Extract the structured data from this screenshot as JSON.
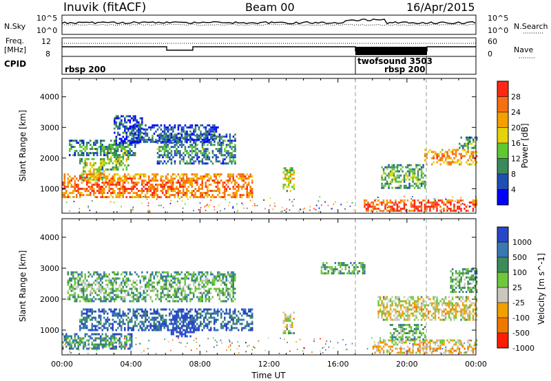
{
  "header": {
    "station": "Inuvik (fitACF)",
    "beam": "Beam 00",
    "date": "16/Apr/2015"
  },
  "strips": {
    "nsky_label": "N.Sky",
    "nsky_ticks": [
      "10^5",
      "10^0"
    ],
    "nsearch_label": "N.Search",
    "nsearch_ticks": [
      "10^5",
      "10^0"
    ],
    "freq_label_1": "Freq.",
    "freq_label_2": "[MHz]",
    "freq_ticks": [
      "12",
      "8"
    ],
    "nave_label": "Nave",
    "nave_ticks": [
      "60",
      "0"
    ],
    "cpid_label": "CPID",
    "cpid_entries": [
      {
        "text": "rbsp 200",
        "start_hour": 0
      },
      {
        "text": "twofsound 3503",
        "start_hour": 17.0
      },
      {
        "text": "rbsp 200",
        "start_hour": 21.0
      }
    ]
  },
  "chart_data": [
    {
      "type": "heatmap",
      "panel": "power",
      "ylabel": "Slant Range [km]",
      "xlabel": "",
      "x_range_hours": [
        0,
        24
      ],
      "y_range_km": [
        200,
        4600
      ],
      "y_ticks": [
        1000,
        2000,
        3000,
        4000
      ],
      "colorbar": {
        "label": "Power [dB]",
        "ticks": [
          "4",
          "8",
          "12",
          "16",
          "20",
          "24",
          "28"
        ],
        "colors": [
          "#0000ff",
          "#1e50b4",
          "#3a8a5c",
          "#5fc832",
          "#e6d20a",
          "#f5a000",
          "#f57014",
          "#ff2814"
        ]
      },
      "echo_regions": [
        {
          "t0": 0.4,
          "t1": 4.2,
          "r0": 2100,
          "r1": 2600,
          "level": 0.35
        },
        {
          "t0": 1.0,
          "t1": 2.4,
          "r0": 1300,
          "r1": 2000,
          "level": 0.55
        },
        {
          "t0": 2.2,
          "t1": 3.8,
          "r0": 1600,
          "r1": 2400,
          "level": 0.5
        },
        {
          "t0": 3.0,
          "t1": 4.6,
          "r0": 2500,
          "r1": 3400,
          "level": 0.25
        },
        {
          "t0": 0.0,
          "t1": 11.0,
          "r0": 700,
          "r1": 1500,
          "level": 0.85
        },
        {
          "t0": 5.5,
          "t1": 10.0,
          "r0": 1800,
          "r1": 2800,
          "level": 0.35
        },
        {
          "t0": 4.0,
          "t1": 9.0,
          "r0": 2500,
          "r1": 3100,
          "level": 0.25
        },
        {
          "t0": 12.8,
          "t1": 13.4,
          "r0": 900,
          "r1": 1700,
          "level": 0.6
        },
        {
          "t0": 17.5,
          "t1": 24.0,
          "r0": 250,
          "r1": 650,
          "level": 0.95
        },
        {
          "t0": 18.5,
          "t1": 21.0,
          "r0": 1000,
          "r1": 1800,
          "level": 0.45
        },
        {
          "t0": 21.0,
          "t1": 24.0,
          "r0": 1800,
          "r1": 2300,
          "level": 0.8
        },
        {
          "t0": 23.0,
          "t1": 24.0,
          "r0": 2300,
          "r1": 2700,
          "level": 0.4
        }
      ]
    },
    {
      "type": "heatmap",
      "panel": "velocity",
      "ylabel": "Slant Range [km]",
      "xlabel": "Time UT",
      "x_range_hours": [
        0,
        24
      ],
      "x_ticks": [
        "00:00",
        "04:00",
        "08:00",
        "12:00",
        "16:00",
        "20:00",
        "00:00"
      ],
      "y_range_km": [
        200,
        4600
      ],
      "y_ticks": [
        1000,
        2000,
        3000,
        4000
      ],
      "colorbar": {
        "label": "Velocity [m s^-1]",
        "ticks": [
          "1000",
          "500",
          "100",
          "25",
          "-25",
          "-100",
          "-500",
          "-1000"
        ],
        "colors": [
          "#2846c8",
          "#3a78b4",
          "#3c8c5a",
          "#6ec83c",
          "#c8c8c0",
          "#f0a000",
          "#f07800",
          "#ff1e00"
        ]
      },
      "echo_regions": [
        {
          "t0": 0.3,
          "t1": 10.0,
          "r0": 1900,
          "r1": 2900,
          "level": 0.45
        },
        {
          "t0": 1.0,
          "t1": 11.0,
          "r0": 1000,
          "r1": 1700,
          "level": 0.25
        },
        {
          "t0": 6.3,
          "t1": 7.6,
          "r0": 800,
          "r1": 1500,
          "level": 0.05
        },
        {
          "t0": 0.0,
          "t1": 4.0,
          "r0": 400,
          "r1": 900,
          "level": 0.35
        },
        {
          "t0": 12.8,
          "t1": 13.4,
          "r0": 900,
          "r1": 1600,
          "level": 0.6
        },
        {
          "t0": 15.0,
          "t1": 17.5,
          "r0": 2800,
          "r1": 3200,
          "level": 0.45
        },
        {
          "t0": 18.3,
          "t1": 24.0,
          "r0": 1300,
          "r1": 2100,
          "level": 0.65
        },
        {
          "t0": 18.0,
          "t1": 24.0,
          "r0": 250,
          "r1": 700,
          "level": 0.7
        },
        {
          "t0": 19.0,
          "t1": 21.0,
          "r0": 700,
          "r1": 1200,
          "level": 0.45
        },
        {
          "t0": 22.5,
          "t1": 24.0,
          "r0": 2200,
          "r1": 3000,
          "level": 0.45
        }
      ]
    }
  ]
}
